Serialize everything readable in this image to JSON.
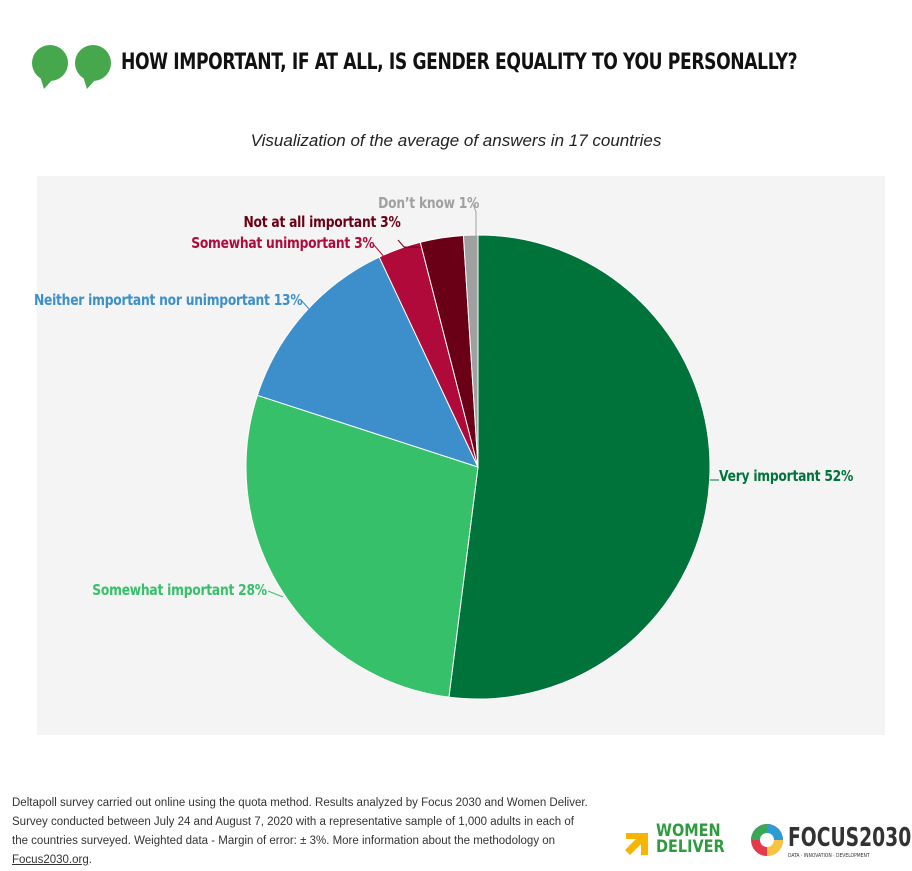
{
  "header": {
    "title": "HOW IMPORTANT, IF AT ALL, IS GENDER EQUALITY TO YOU PERSONALLY?",
    "icon": "speech-bubbles-icon",
    "icon_color": "#46a74c"
  },
  "chart_data": {
    "type": "pie",
    "title": "HOW IMPORTANT, IF AT ALL, IS GENDER EQUALITY TO YOU PERSONALLY?",
    "subtitle": "Visualization of the average of answers in 17 countries",
    "slices": [
      {
        "label": "Very important 52%",
        "name": "Very important",
        "value": 52,
        "color": "#00733b"
      },
      {
        "label": "Somewhat important 28%",
        "name": "Somewhat important",
        "value": 28,
        "color": "#37c06a"
      },
      {
        "label": "Neither important nor unimportant 13%",
        "name": "Neither important nor unimportant",
        "value": 13,
        "color": "#3d8fcb"
      },
      {
        "label": "Somewhat unimportant 3%",
        "name": "Somewhat unimportant",
        "value": 3,
        "color": "#b00a3a"
      },
      {
        "label": "Not at all important 3%",
        "name": "Not at all important",
        "value": 3,
        "color": "#6a0016"
      },
      {
        "label": "Don’t know 1%",
        "name": "Don’t know",
        "value": 1,
        "color": "#a0a0a0"
      }
    ]
  },
  "footer": {
    "note": "Deltapoll survey carried out online using the quota method. Results analyzed by Focus 2030 and Women Deliver. Survey conducted between July 24 and August 7, 2020 with a representative sample of 1,000 adults in each of the countries surveyed. Weighted data - Margin of error: ± 3%. More information about the methodology on ",
    "link": "Focus2030.org",
    "end": ".",
    "logo1": "WOMEN DELIVER",
    "logo2": "FOCUS2030",
    "logo2_tag": "DATA · INNOVATION · DEVELOPMENT"
  }
}
